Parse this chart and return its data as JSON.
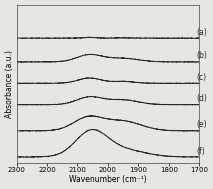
{
  "x_min": 1700,
  "x_max": 2300,
  "xlabel": "Wavenumber (cm⁻¹)",
  "ylabel": "Absorbance (a.u.)",
  "labels": [
    "(a)",
    "(b)",
    "(c)",
    "(d)",
    "(e)",
    "(f)"
  ],
  "background_color": "#e8e6e0",
  "line_color": "#2a2a2a",
  "offsets": [
    5.0,
    4.0,
    3.1,
    2.2,
    1.1,
    0.0
  ],
  "peak1_centers": [
    2060,
    2060,
    2060,
    2060,
    2065,
    2055
  ],
  "peak2_centers": [
    1950,
    1950,
    1950,
    1950,
    1950,
    1950
  ],
  "amplitudes_p1": [
    0.03,
    0.3,
    0.22,
    0.32,
    0.55,
    1.05
  ],
  "amplitudes_p2": [
    0.01,
    0.15,
    0.08,
    0.2,
    0.4,
    0.3
  ],
  "widths_p1": [
    20,
    42,
    38,
    42,
    48,
    52
  ],
  "widths_p2": [
    35,
    50,
    35,
    50,
    60,
    70
  ],
  "noise_scale": 0.006,
  "xticks": [
    2300,
    2200,
    2100,
    2000,
    1900,
    1800,
    1700
  ],
  "label_fontsize": 5.5,
  "tick_fontsize": 5.0,
  "ylabel_fontsize": 5.5,
  "xlabel_fontsize": 5.5
}
